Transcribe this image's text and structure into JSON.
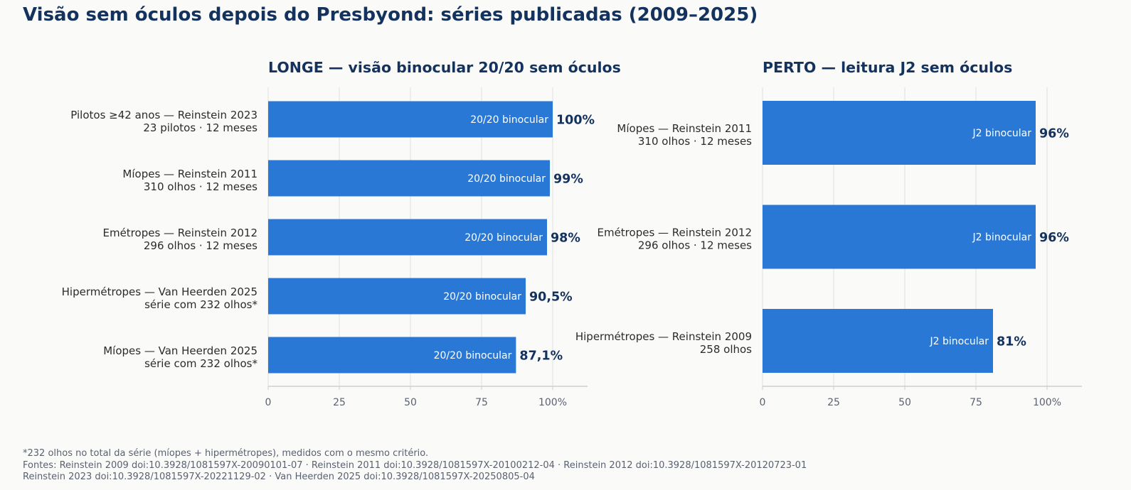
{
  "title": "Visão sem óculos depois do Presbyond: séries publicadas (2009–2025)",
  "colors": {
    "bar": "#2a78d6",
    "title": "#14325e",
    "value": "#14325e",
    "label": "#2b2b2b",
    "tick": "#5a6170",
    "grid": "#e4e4e4",
    "axis": "#cfcfcf"
  },
  "chart_data": [
    {
      "type": "bar",
      "orientation": "horizontal",
      "title": "LONGE — visão binocular 20/20 sem óculos",
      "xlim": [
        0,
        112
      ],
      "xticks": [
        0,
        25,
        50,
        75,
        100
      ],
      "xtick_labels": [
        "0",
        "25",
        "50",
        "75",
        "100%"
      ],
      "grid": true,
      "bar_inner_label": "20/20 binocular",
      "categories": [
        [
          "Pilotos ≥42 anos — Reinstein 2023",
          "23 pilotos · 12 meses"
        ],
        [
          "Míopes — Reinstein 2011",
          "310 olhos · 12 meses"
        ],
        [
          "Emétropes — Reinstein 2012",
          "296 olhos · 12 meses"
        ],
        [
          "Hipermétropes — Van Heerden 2025",
          "série com 232 olhos*"
        ],
        [
          "Míopes — Van Heerden 2025",
          "série com 232 olhos*"
        ]
      ],
      "values": [
        100,
        99,
        98,
        90.5,
        87.1
      ],
      "value_labels": [
        "100%",
        "99%",
        "98%",
        "90,5%",
        "87,1%"
      ]
    },
    {
      "type": "bar",
      "orientation": "horizontal",
      "title": "PERTO — leitura J2 sem óculos",
      "xlim": [
        0,
        112
      ],
      "xticks": [
        0,
        25,
        50,
        75,
        100
      ],
      "xtick_labels": [
        "0",
        "25",
        "50",
        "75",
        "100%"
      ],
      "grid": true,
      "bar_inner_label": "J2 binocular",
      "categories": [
        [
          "Míopes — Reinstein 2011",
          "310 olhos · 12 meses"
        ],
        [
          "Emétropes — Reinstein 2012",
          "296 olhos · 12 meses"
        ],
        [
          "Hipermétropes — Reinstein 2009",
          "258 olhos"
        ]
      ],
      "values": [
        96,
        96,
        81
      ],
      "value_labels": [
        "96%",
        "96%",
        "81%"
      ]
    }
  ],
  "footnote": {
    "line1": "*232 olhos no total da série (míopes + hipermétropes), medidos com o mesmo critério.",
    "line2": "Fontes: Reinstein 2009 doi:10.3928/1081597X-20090101-07 · Reinstein 2011 doi:10.3928/1081597X-20100212-04 · Reinstein 2012 doi:10.3928/1081597X-20120723-01",
    "line3": "Reinstein 2023 doi:10.3928/1081597X-20221129-02 · Van Heerden 2025 doi:10.3928/1081597X-20250805-04"
  }
}
